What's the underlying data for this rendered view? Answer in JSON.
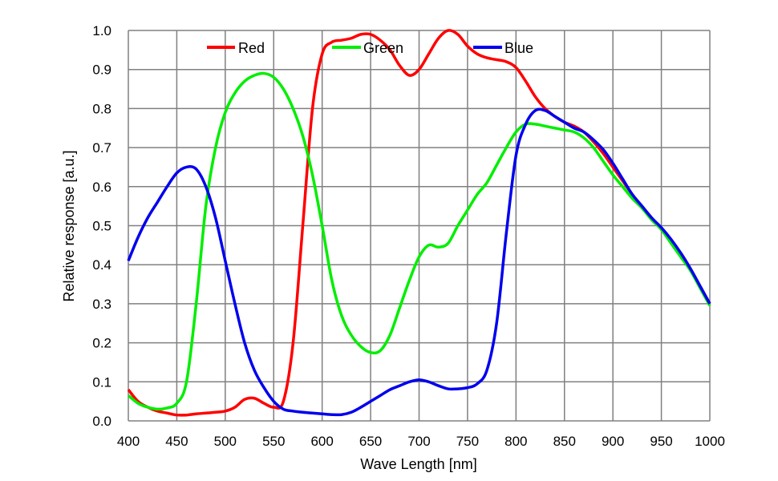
{
  "chart_data": {
    "type": "line",
    "title": "",
    "xlabel": "Wave Length [nm]",
    "ylabel": "Relative response [a.u.]",
    "xlim": [
      400,
      1000
    ],
    "ylim": [
      0,
      1.0
    ],
    "xticks": [
      "400",
      "450",
      "500",
      "550",
      "600",
      "650",
      "700",
      "750",
      "800",
      "850",
      "900",
      "950",
      "1000"
    ],
    "yticks": [
      "0.0",
      "0.1",
      "0.2",
      "0.3",
      "0.4",
      "0.5",
      "0.6",
      "0.7",
      "0.8",
      "0.9",
      "1.0"
    ],
    "grid": true,
    "legend_position": "top",
    "x": [
      400,
      410,
      420,
      430,
      440,
      450,
      460,
      470,
      480,
      490,
      500,
      510,
      520,
      530,
      540,
      550,
      560,
      570,
      580,
      590,
      600,
      610,
      620,
      630,
      640,
      650,
      660,
      670,
      680,
      690,
      700,
      710,
      720,
      730,
      740,
      750,
      760,
      770,
      780,
      790,
      800,
      810,
      820,
      830,
      840,
      850,
      860,
      870,
      880,
      890,
      900,
      910,
      920,
      930,
      940,
      950,
      960,
      970,
      980,
      990,
      1000
    ],
    "series": [
      {
        "name": "Red",
        "color": "#ff0000",
        "values": [
          0.08,
          0.05,
          0.035,
          0.025,
          0.02,
          0.015,
          0.015,
          0.018,
          0.02,
          0.022,
          0.025,
          0.035,
          0.055,
          0.058,
          0.045,
          0.035,
          0.05,
          0.2,
          0.5,
          0.8,
          0.94,
          0.97,
          0.975,
          0.98,
          0.99,
          0.99,
          0.975,
          0.95,
          0.91,
          0.885,
          0.9,
          0.94,
          0.98,
          1.0,
          0.99,
          0.96,
          0.94,
          0.93,
          0.925,
          0.92,
          0.905,
          0.87,
          0.83,
          0.8,
          0.78,
          0.765,
          0.755,
          0.74,
          0.715,
          0.685,
          0.65,
          0.615,
          0.58,
          0.55,
          0.52,
          0.49,
          0.46,
          0.43,
          0.39,
          0.345,
          0.3
        ]
      },
      {
        "name": "Green",
        "color": "#00ee00",
        "values": [
          0.065,
          0.045,
          0.035,
          0.03,
          0.033,
          0.045,
          0.1,
          0.3,
          0.55,
          0.7,
          0.79,
          0.84,
          0.87,
          0.885,
          0.89,
          0.88,
          0.85,
          0.8,
          0.73,
          0.63,
          0.5,
          0.36,
          0.27,
          0.22,
          0.19,
          0.175,
          0.18,
          0.22,
          0.29,
          0.36,
          0.42,
          0.45,
          0.445,
          0.455,
          0.5,
          0.54,
          0.58,
          0.61,
          0.655,
          0.7,
          0.74,
          0.76,
          0.76,
          0.755,
          0.75,
          0.745,
          0.74,
          0.725,
          0.7,
          0.665,
          0.63,
          0.6,
          0.57,
          0.545,
          0.515,
          0.49,
          0.455,
          0.42,
          0.385,
          0.34,
          0.295
        ]
      },
      {
        "name": "Blue",
        "color": "#0000ee",
        "values": [
          0.41,
          0.47,
          0.52,
          0.56,
          0.6,
          0.635,
          0.65,
          0.645,
          0.6,
          0.52,
          0.41,
          0.3,
          0.2,
          0.13,
          0.085,
          0.05,
          0.03,
          0.025,
          0.022,
          0.02,
          0.018,
          0.016,
          0.016,
          0.022,
          0.035,
          0.05,
          0.065,
          0.08,
          0.09,
          0.1,
          0.105,
          0.1,
          0.09,
          0.082,
          0.082,
          0.085,
          0.095,
          0.13,
          0.25,
          0.48,
          0.68,
          0.76,
          0.795,
          0.795,
          0.78,
          0.765,
          0.75,
          0.74,
          0.72,
          0.695,
          0.66,
          0.62,
          0.58,
          0.55,
          0.52,
          0.495,
          0.465,
          0.43,
          0.39,
          0.345,
          0.3
        ]
      }
    ]
  }
}
